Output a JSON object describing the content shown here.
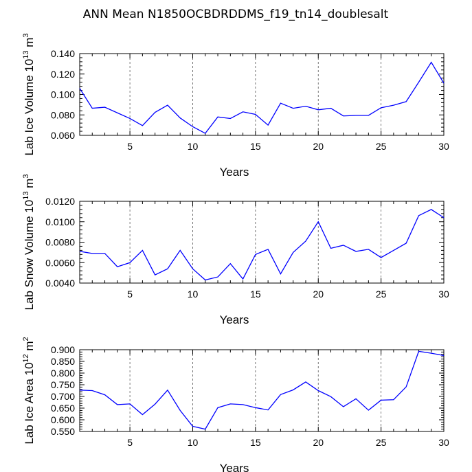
{
  "title": "ANN Mean N1850OCBDRDDMS_f19_tn14_doublesalt",
  "colors": {
    "line": "#0000ff",
    "grid": "#555555",
    "axis": "#000000"
  },
  "chart_data": [
    {
      "type": "line",
      "ylabel_main": "Lab Ice Volume 10",
      "ylabel_sup": "13",
      "ylabel_tail": " m",
      "ylabel_sup2": "3",
      "xlabel": "Years",
      "xlim": [
        1,
        30
      ],
      "ylim": [
        0.06,
        0.14
      ],
      "xticks": [
        5,
        10,
        15,
        20,
        25,
        30
      ],
      "xtick_labels": [
        "5",
        "10",
        "15",
        "20",
        "25",
        "30"
      ],
      "yticks": [
        0.06,
        0.08,
        0.1,
        0.12,
        0.14
      ],
      "ytick_labels": [
        "0.060",
        "0.080",
        "0.100",
        "0.120",
        "0.140"
      ],
      "x": [
        1,
        2,
        3,
        4,
        5,
        6,
        7,
        8,
        9,
        10,
        11,
        12,
        13,
        14,
        15,
        16,
        17,
        18,
        19,
        20,
        21,
        22,
        23,
        24,
        25,
        26,
        27,
        28,
        29,
        30
      ],
      "y": [
        0.106,
        0.0865,
        0.0875,
        0.082,
        0.0765,
        0.0695,
        0.0825,
        0.0895,
        0.077,
        0.0685,
        0.062,
        0.078,
        0.0765,
        0.083,
        0.0805,
        0.07,
        0.0915,
        0.0865,
        0.0885,
        0.085,
        0.0865,
        0.079,
        0.0795,
        0.0795,
        0.087,
        0.0895,
        0.093,
        0.112,
        0.1315,
        0.111
      ]
    },
    {
      "type": "line",
      "ylabel_main": "Lab Snow Volume 10",
      "ylabel_sup": "13",
      "ylabel_tail": " m",
      "ylabel_sup2": "3",
      "xlabel": "Years",
      "xlim": [
        1,
        30
      ],
      "ylim": [
        0.004,
        0.012
      ],
      "xticks": [
        5,
        10,
        15,
        20,
        25,
        30
      ],
      "xtick_labels": [
        "5",
        "10",
        "15",
        "20",
        "25",
        "30"
      ],
      "yticks": [
        0.004,
        0.006,
        0.008,
        0.01,
        0.012
      ],
      "ytick_labels": [
        "0.0040",
        "0.0060",
        "0.0080",
        "0.0100",
        "0.0120"
      ],
      "x": [
        1,
        2,
        3,
        4,
        5,
        6,
        7,
        8,
        9,
        10,
        11,
        12,
        13,
        14,
        15,
        16,
        17,
        18,
        19,
        20,
        21,
        22,
        23,
        24,
        25,
        26,
        27,
        28,
        29,
        30
      ],
      "y": [
        0.0071,
        0.0069,
        0.0069,
        0.0056,
        0.006,
        0.0072,
        0.0048,
        0.0054,
        0.0072,
        0.0054,
        0.0043,
        0.0046,
        0.0059,
        0.0044,
        0.0068,
        0.0073,
        0.0049,
        0.007,
        0.0081,
        0.01,
        0.0074,
        0.0077,
        0.0071,
        0.0073,
        0.0065,
        0.0072,
        0.0079,
        0.0106,
        0.0112,
        0.0104
      ]
    },
    {
      "type": "line",
      "ylabel_main": "Lab Ice Area 10",
      "ylabel_sup": "12",
      "ylabel_tail": " m",
      "ylabel_sup2": "2",
      "xlabel": "Years",
      "xlim": [
        1,
        30
      ],
      "ylim": [
        0.55,
        0.9
      ],
      "xticks": [
        5,
        10,
        15,
        20,
        25,
        30
      ],
      "xtick_labels": [
        "5",
        "10",
        "15",
        "20",
        "25",
        "30"
      ],
      "yticks": [
        0.55,
        0.6,
        0.65,
        0.7,
        0.75,
        0.8,
        0.85,
        0.9
      ],
      "ytick_labels": [
        "0.550",
        "0.600",
        "0.650",
        "0.700",
        "0.750",
        "0.800",
        "0.850",
        "0.900"
      ],
      "x": [
        1,
        2,
        3,
        4,
        5,
        6,
        7,
        8,
        9,
        10,
        11,
        12,
        13,
        14,
        15,
        16,
        17,
        18,
        19,
        20,
        21,
        22,
        23,
        24,
        25,
        26,
        27,
        28,
        29,
        30
      ],
      "y": [
        0.727,
        0.725,
        0.707,
        0.665,
        0.668,
        0.622,
        0.667,
        0.727,
        0.64,
        0.572,
        0.56,
        0.652,
        0.668,
        0.665,
        0.652,
        0.642,
        0.708,
        0.728,
        0.762,
        0.725,
        0.699,
        0.656,
        0.69,
        0.641,
        0.684,
        0.686,
        0.741,
        0.893,
        0.885,
        0.875
      ]
    }
  ]
}
